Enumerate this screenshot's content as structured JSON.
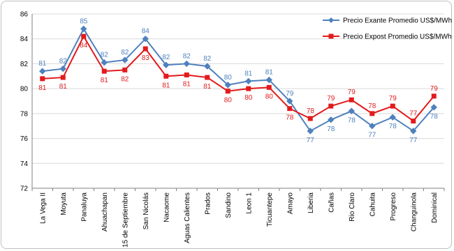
{
  "chart_data": {
    "type": "line",
    "title": "",
    "xlabel": "",
    "ylabel": "",
    "ylim": [
      72,
      86
    ],
    "yticks": [
      72,
      74,
      76,
      78,
      80,
      82,
      84,
      86
    ],
    "grid": true,
    "legend_position": "top-right",
    "categories": [
      "La Vega II",
      "Moyuta",
      "Panaluya",
      "Ahuachapan",
      "15 de Septiembre",
      "San Nicolás",
      "Nacaome",
      "Aguas Calientes",
      "Prados",
      "Sandino",
      "Leon 1",
      "Ticuantepe",
      "Amayo",
      "Liberia",
      "Cañas",
      "Rio Claro",
      "Cahuita",
      "Progreso",
      "Changuinola",
      "Dominical"
    ],
    "series": [
      {
        "name": "Precio Exante Promedio US$/MWh",
        "color": "#4F81BD",
        "marker": "diamond",
        "values": [
          81.4,
          81.6,
          84.8,
          82.1,
          82.3,
          84.0,
          81.9,
          82.0,
          81.8,
          80.3,
          80.6,
          80.7,
          79.0,
          76.6,
          77.5,
          78.2,
          77.0,
          77.7,
          76.6,
          78.5
        ],
        "labels": [
          "81",
          "82",
          "85",
          "82",
          "82",
          "84",
          "82",
          "82",
          "82",
          "80",
          "81",
          "81",
          "79",
          "77",
          "78",
          "78",
          "77",
          "78",
          "77",
          "78"
        ],
        "label_side": [
          "above",
          "above",
          "above",
          "above",
          "above",
          "above",
          "above",
          "above",
          "above",
          "above",
          "above",
          "above",
          "above",
          "below",
          "below",
          "below",
          "below",
          "below",
          "below",
          "below"
        ]
      },
      {
        "name": "Precio Expost Promedio US$/MWh",
        "color": "#E31A1C",
        "marker": "square",
        "values": [
          80.8,
          80.9,
          84.2,
          81.4,
          81.5,
          83.2,
          81.0,
          81.1,
          80.9,
          79.8,
          80.0,
          80.1,
          78.4,
          77.6,
          78.6,
          79.1,
          78.0,
          78.6,
          77.4,
          79.4
        ],
        "labels": [
          "81",
          "81",
          "84",
          "81",
          "82",
          "83",
          "81",
          "81",
          "81",
          "80",
          "80",
          "80",
          "78",
          "78",
          "79",
          "79",
          "78",
          "79",
          "77",
          "79"
        ],
        "label_side": [
          "below",
          "below",
          "below",
          "below",
          "below",
          "below",
          "below",
          "below",
          "below",
          "below",
          "below",
          "below",
          "below",
          "above",
          "above",
          "above",
          "above",
          "above",
          "above",
          "above"
        ]
      }
    ]
  }
}
